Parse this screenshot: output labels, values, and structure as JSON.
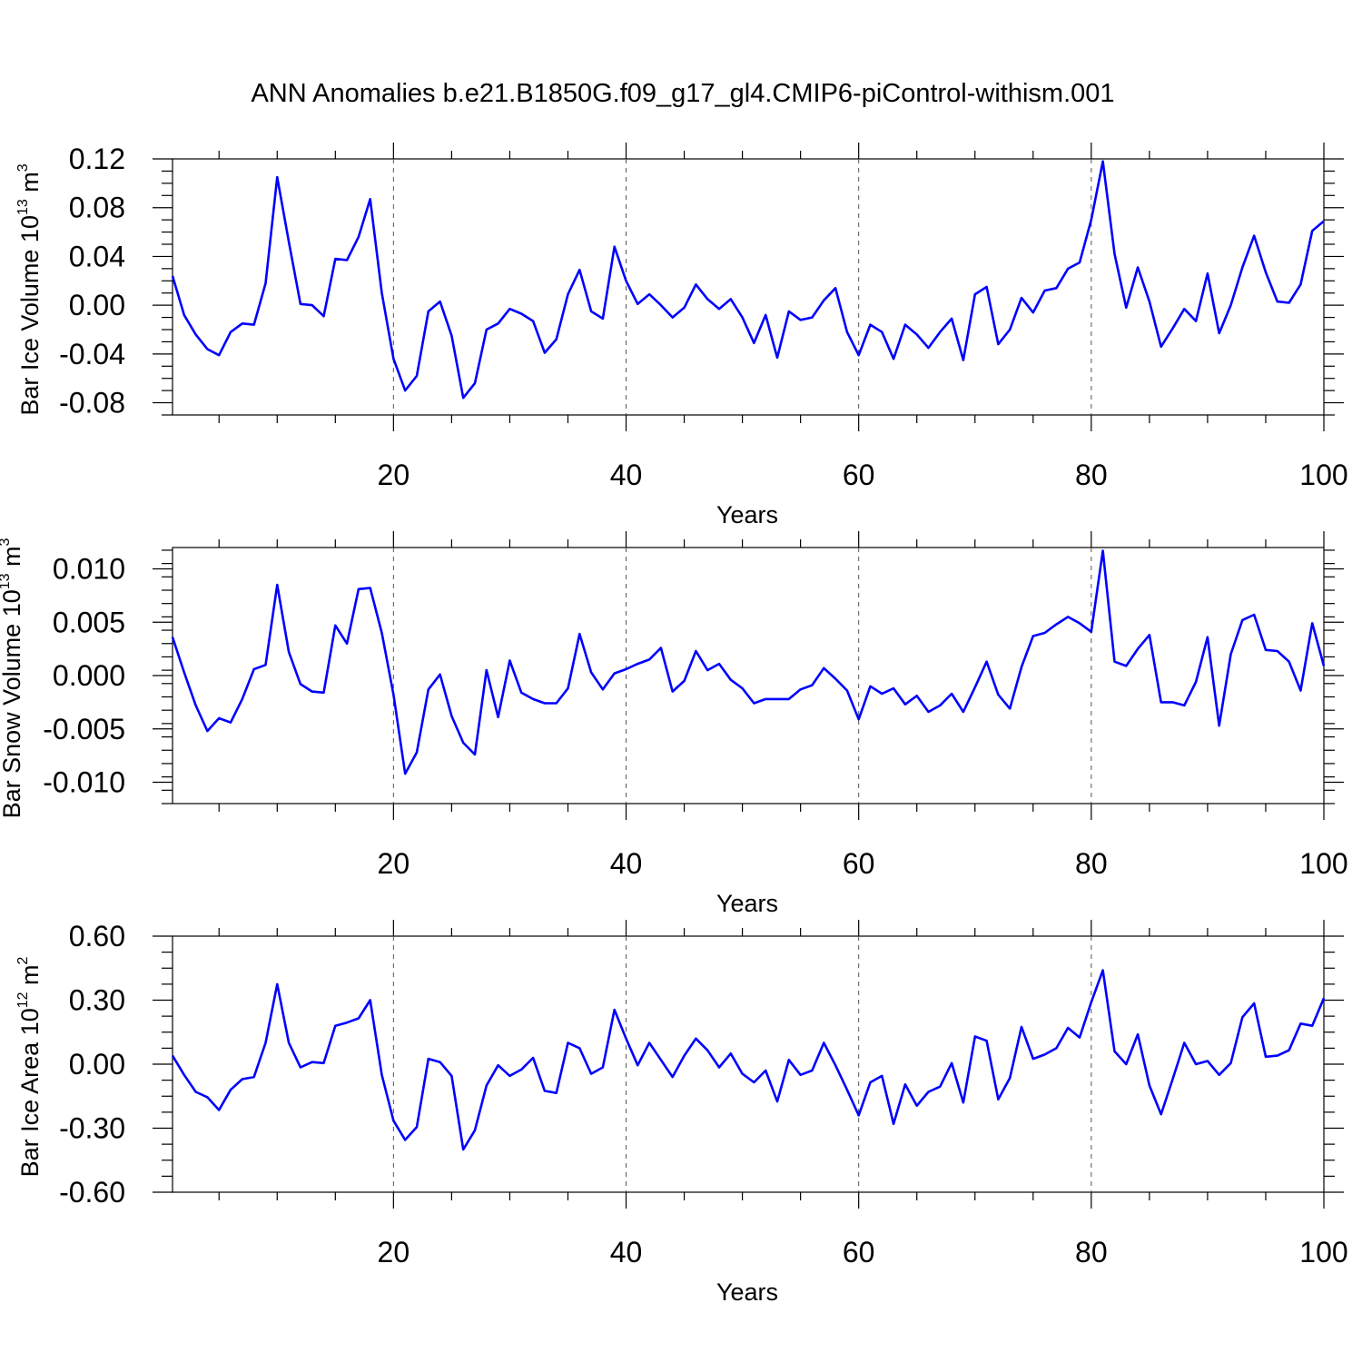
{
  "title": "ANN Anomalies b.e21.B1850G.f09_g17_gl4.CMIP6-piControl-withism.001",
  "line_color": "#0000ff",
  "chart_data": [
    {
      "type": "line",
      "name": "panel-ice-volume",
      "ylabel": {
        "text": "Bar Ice Volume 10",
        "exp": "13",
        "unit": " m",
        "unit_exp": "3"
      },
      "xlabel": "Years",
      "xlim": [
        1,
        100
      ],
      "ylim": [
        -0.09,
        0.12
      ],
      "yticks": [
        0.12,
        0.08,
        0.04,
        0.0,
        -0.04,
        -0.08
      ],
      "ytick_labels": [
        "0.12",
        "0.08",
        "0.04",
        "0.00",
        "-0.04",
        "-0.08"
      ],
      "xticks": [
        20,
        40,
        60,
        80,
        100
      ],
      "xtick_labels": [
        "20",
        "40",
        "60",
        "80",
        "100"
      ],
      "grid_x": [
        20,
        40,
        60,
        80
      ],
      "values": [
        0.024,
        -0.008,
        -0.024,
        -0.036,
        -0.041,
        -0.022,
        -0.015,
        -0.016,
        0.018,
        0.105,
        0.052,
        0.001,
        0.0,
        -0.009,
        0.038,
        0.037,
        0.056,
        0.087,
        0.01,
        -0.044,
        -0.07,
        -0.058,
        -0.005,
        0.003,
        -0.025,
        -0.076,
        -0.064,
        -0.02,
        -0.015,
        -0.003,
        -0.007,
        -0.013,
        -0.039,
        -0.028,
        0.009,
        0.029,
        -0.005,
        -0.011,
        0.048,
        0.02,
        0.001,
        0.009,
        0.0,
        -0.01,
        -0.002,
        0.017,
        0.005,
        -0.003,
        0.005,
        -0.01,
        -0.031,
        -0.008,
        -0.043,
        -0.005,
        -0.012,
        -0.01,
        0.004,
        0.014,
        -0.022,
        -0.041,
        -0.016,
        -0.022,
        -0.044,
        -0.016,
        -0.024,
        -0.035,
        -0.022,
        -0.011,
        -0.045,
        0.009,
        0.015,
        -0.032,
        -0.02,
        0.006,
        -0.006,
        0.012,
        0.014,
        0.03,
        0.035,
        0.07,
        0.118,
        0.042,
        -0.002,
        0.031,
        0.003,
        -0.034,
        -0.019,
        -0.003,
        -0.013,
        0.026,
        -0.023,
        0.0,
        0.031,
        0.057,
        0.027,
        0.003,
        0.002,
        0.017,
        0.061,
        0.069
      ]
    },
    {
      "type": "line",
      "name": "panel-snow-volume",
      "ylabel": {
        "text": "Bar Snow Volume 10",
        "exp": "13",
        "unit": " m",
        "unit_exp": "3"
      },
      "xlabel": "Years",
      "xlim": [
        1,
        100
      ],
      "ylim": [
        -0.012,
        0.012
      ],
      "yticks": [
        0.01,
        0.005,
        0.0,
        -0.005,
        -0.01
      ],
      "ytick_labels": [
        "0.010",
        "0.005",
        "0.000",
        "-0.005",
        "-0.010"
      ],
      "xticks": [
        20,
        40,
        60,
        80,
        100
      ],
      "xtick_labels": [
        "20",
        "40",
        "60",
        "80",
        "100"
      ],
      "grid_x": [
        20,
        40,
        60,
        80
      ],
      "values": [
        0.0036,
        0.0003,
        -0.0028,
        -0.0052,
        -0.004,
        -0.0044,
        -0.0022,
        0.0006,
        0.001,
        0.0085,
        0.0022,
        -0.0008,
        -0.0015,
        -0.0016,
        0.0047,
        0.003,
        0.0081,
        0.0082,
        0.004,
        -0.0018,
        -0.0092,
        -0.0072,
        -0.0013,
        0.0001,
        -0.0038,
        -0.0063,
        -0.0074,
        0.0005,
        -0.0039,
        0.0014,
        -0.0016,
        -0.0022,
        -0.0026,
        -0.0026,
        -0.0012,
        0.0039,
        0.0003,
        -0.0013,
        0.0002,
        0.0006,
        0.0011,
        0.0015,
        0.0026,
        -0.0015,
        -0.0005,
        0.0023,
        0.0005,
        0.0011,
        -0.0004,
        -0.0012,
        -0.0026,
        -0.0022,
        -0.0022,
        -0.0022,
        -0.0013,
        -0.0009,
        0.0007,
        -0.0003,
        -0.0014,
        -0.0041,
        -0.001,
        -0.0017,
        -0.0012,
        -0.0027,
        -0.0019,
        -0.0034,
        -0.0028,
        -0.0017,
        -0.0034,
        -0.0011,
        0.0013,
        -0.0018,
        -0.0031,
        0.0008,
        0.0037,
        0.004,
        0.0048,
        0.0055,
        0.0049,
        0.0041,
        0.0117,
        0.0013,
        0.0009,
        0.0025,
        0.0038,
        -0.0025,
        -0.0025,
        -0.0028,
        -0.0006,
        0.0036,
        -0.0047,
        0.002,
        0.0052,
        0.0057,
        0.0024,
        0.0023,
        0.0013,
        -0.0014,
        0.0049,
        0.0009
      ]
    },
    {
      "type": "line",
      "name": "panel-ice-area",
      "ylabel": {
        "text": "Bar Ice Area 10",
        "exp": "12",
        "unit": " m",
        "unit_exp": "2"
      },
      "xlabel": "Years",
      "xlim": [
        1,
        100
      ],
      "ylim": [
        -0.6,
        0.6
      ],
      "yticks": [
        0.6,
        0.3,
        0.0,
        -0.3,
        -0.6
      ],
      "ytick_labels": [
        "0.60",
        "0.30",
        "0.00",
        "-0.30",
        "-0.60"
      ],
      "xticks": [
        20,
        40,
        60,
        80,
        100
      ],
      "xtick_labels": [
        "20",
        "40",
        "60",
        "80",
        "100"
      ],
      "grid_x": [
        20,
        40,
        60,
        80
      ],
      "values": [
        0.04,
        -0.05,
        -0.13,
        -0.155,
        -0.215,
        -0.12,
        -0.07,
        -0.06,
        0.1,
        0.375,
        0.1,
        -0.015,
        0.01,
        0.005,
        0.18,
        0.195,
        0.215,
        0.3,
        -0.05,
        -0.265,
        -0.355,
        -0.295,
        0.025,
        0.01,
        -0.055,
        -0.4,
        -0.31,
        -0.1,
        -0.005,
        -0.055,
        -0.025,
        0.03,
        -0.125,
        -0.135,
        0.1,
        0.075,
        -0.045,
        -0.015,
        0.255,
        0.12,
        -0.005,
        0.1,
        0.02,
        -0.06,
        0.04,
        0.12,
        0.065,
        -0.015,
        0.05,
        -0.045,
        -0.085,
        -0.03,
        -0.175,
        0.02,
        -0.05,
        -0.03,
        0.1,
        -0.005,
        -0.12,
        -0.24,
        -0.085,
        -0.055,
        -0.28,
        -0.095,
        -0.195,
        -0.13,
        -0.105,
        0.005,
        -0.18,
        0.13,
        0.11,
        -0.165,
        -0.065,
        0.175,
        0.025,
        0.045,
        0.075,
        0.17,
        0.125,
        0.29,
        0.44,
        0.06,
        0.0,
        0.14,
        -0.1,
        -0.235,
        -0.07,
        0.1,
        0.0,
        0.015,
        -0.05,
        0.005,
        0.22,
        0.285,
        0.035,
        0.04,
        0.065,
        0.19,
        0.18,
        0.31
      ]
    }
  ]
}
